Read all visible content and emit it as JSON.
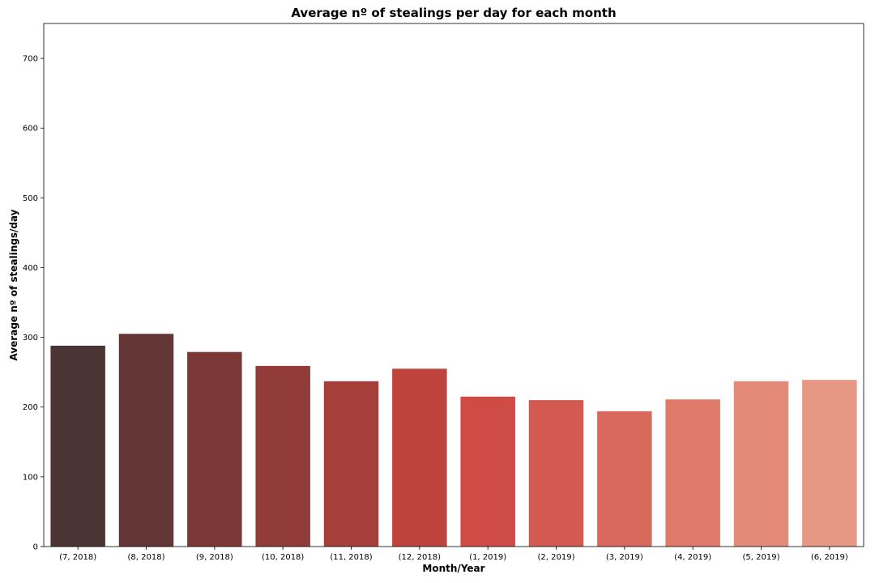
{
  "chart_data": {
    "type": "bar",
    "title": "Average nº of stealings per day for each month",
    "xlabel": "Month/Year",
    "ylabel": "Average nº of stealings/day",
    "categories": [
      "(7, 2018)",
      "(8, 2018)",
      "(9, 2018)",
      "(10, 2018)",
      "(11, 2018)",
      "(12, 2018)",
      "(1, 2019)",
      "(2, 2019)",
      "(3, 2019)",
      "(4, 2019)",
      "(5, 2019)",
      "(6, 2019)"
    ],
    "values": [
      288,
      305,
      279,
      259,
      237,
      255,
      215,
      210,
      194,
      211,
      237,
      239
    ],
    "colors": [
      "#4b3534",
      "#643635",
      "#7b3836",
      "#913c38",
      "#a63f3a",
      "#be433d",
      "#cf4b45",
      "#d35a50",
      "#d9695c",
      "#df796a",
      "#e38a79",
      "#e69884"
    ],
    "ylim": [
      0,
      750
    ],
    "yticks": [
      0,
      100,
      200,
      300,
      400,
      500,
      600,
      700
    ],
    "grid": false
  }
}
